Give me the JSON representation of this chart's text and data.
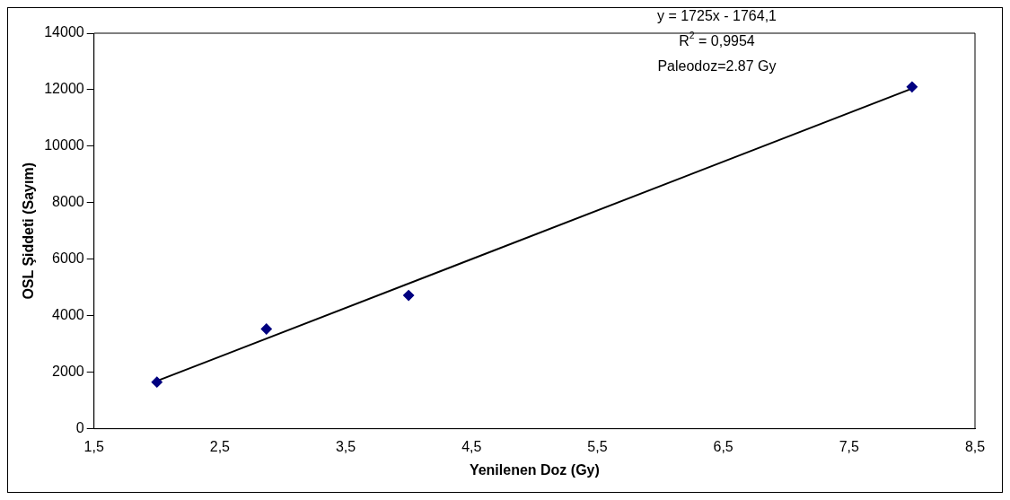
{
  "chart_data": {
    "type": "scatter",
    "xlabel": "Yenilenen Doz (Gy)",
    "ylabel": "OSL Şiddeti (Sayım)",
    "series": [
      {
        "type": "scatter",
        "color": "#000080",
        "marker": "diamond",
        "x": [
          2,
          2.87,
          4,
          8
        ],
        "values": [
          1650,
          3530,
          4720,
          12100
        ]
      },
      {
        "type": "line",
        "color": "#000000",
        "marker": "none",
        "line_style": "solid",
        "x": [
          2,
          8
        ],
        "values": [
          1690,
          12040
        ]
      }
    ],
    "xlim": [
      1.5,
      8.5
    ],
    "xticks": [
      {
        "value": 1.5,
        "label": "1,5"
      },
      {
        "value": 2.5,
        "label": "2,5"
      },
      {
        "value": 3.5,
        "label": "3,5"
      },
      {
        "value": 4.5,
        "label": "4,5"
      },
      {
        "value": 5.5,
        "label": "5,5"
      },
      {
        "value": 6.5,
        "label": "6,5"
      },
      {
        "value": 7.5,
        "label": "7,5"
      },
      {
        "value": 8.5,
        "label": "8,5"
      }
    ],
    "ylim": [
      0,
      14000
    ],
    "yticks": [
      0,
      2000,
      4000,
      6000,
      8000,
      10000,
      12000,
      14000
    ],
    "grid": false,
    "legend": false,
    "annotations": [
      "y = 1725x - 1764,1",
      "R$^{2}$ = 0,9954",
      "Paleodoz=2.87 Gy"
    ]
  }
}
